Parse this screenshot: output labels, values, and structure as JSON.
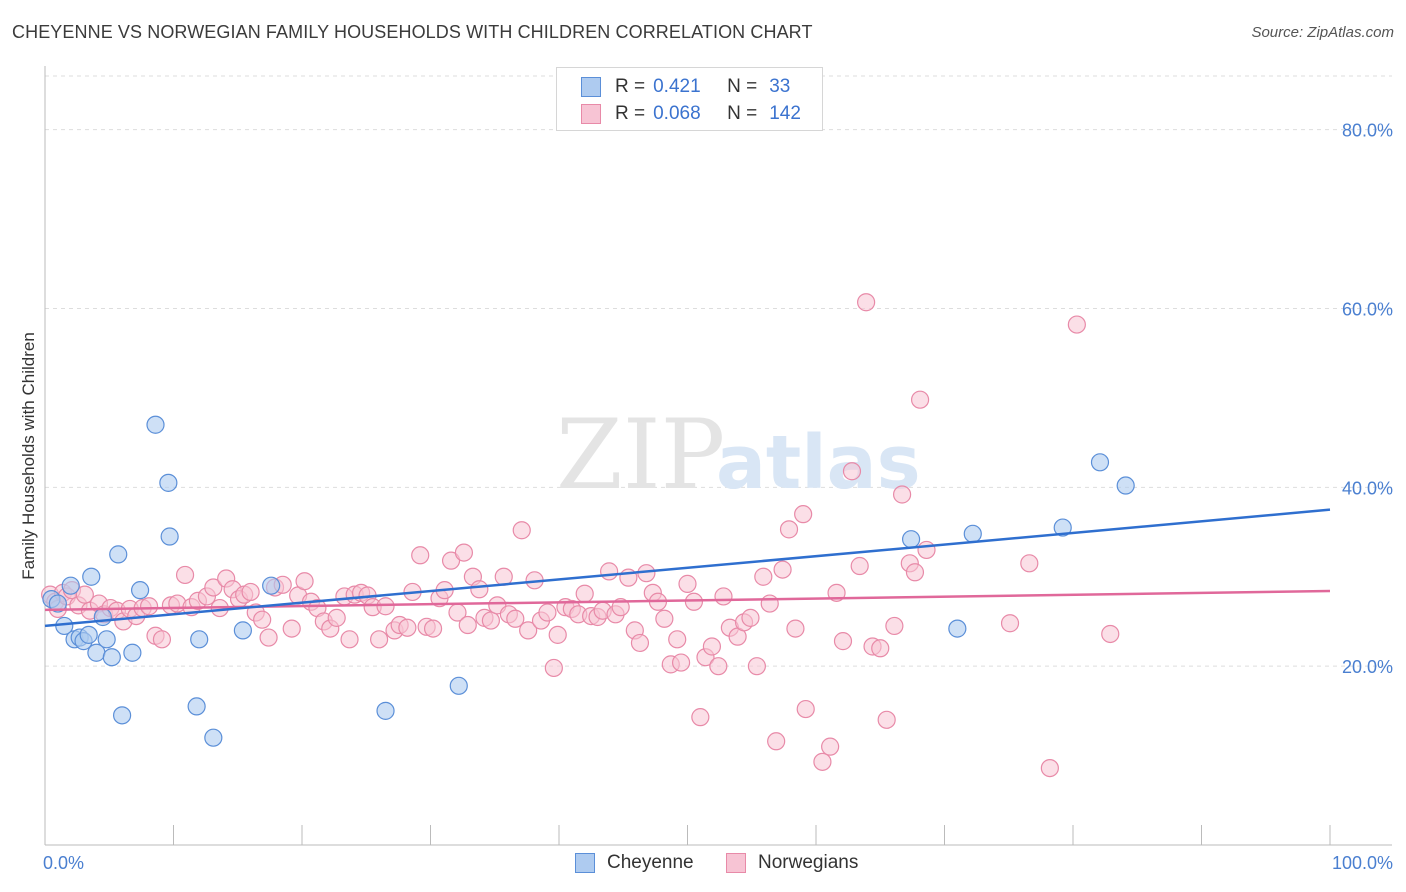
{
  "title": "CHEYENNE VS NORWEGIAN FAMILY HOUSEHOLDS WITH CHILDREN CORRELATION CHART",
  "source": "Source: ZipAtlas.com",
  "watermark": {
    "zip": "ZIP",
    "atlas": "atlas"
  },
  "colors": {
    "cheyenne_fill": "#aecbf0",
    "cheyenne_stroke": "#5b8fd8",
    "cheyenne_line": "#2f6fcf",
    "norwegian_fill": "#f7c4d4",
    "norwegian_stroke": "#e88aa8",
    "norwegian_line": "#e0689a",
    "tick_text": "#4a7fd0",
    "grid": "#dddddd"
  },
  "legend": {
    "rows": [
      {
        "r_label": "R =",
        "r_value": "0.421",
        "n_label": "N =",
        "n_value": "33"
      },
      {
        "r_label": "R =",
        "r_value": "0.068",
        "n_label": "N =",
        "n_value": "142"
      }
    ]
  },
  "bottom_legend": {
    "cheyenne": "Cheyenne",
    "norwegians": "Norwegians"
  },
  "chart_data": {
    "type": "scatter",
    "title": "CHEYENNE VS NORWEGIAN FAMILY HOUSEHOLDS WITH CHILDREN CORRELATION CHART",
    "xlabel": "",
    "ylabel": "Family Households with Children",
    "xlim": [
      0,
      100
    ],
    "ylim": [
      0,
      86
    ],
    "x_tick_labels": [
      "0.0%",
      "100.0%"
    ],
    "y_ticks": [
      20,
      40,
      60,
      80
    ],
    "y_tick_labels": [
      "20.0%",
      "40.0%",
      "60.0%",
      "80.0%"
    ],
    "grid": "horizontal dashed",
    "legend_position": "top-center",
    "series": [
      {
        "name": "Cheyenne",
        "R": 0.421,
        "N": 33,
        "trend": {
          "x": [
            0,
            100
          ],
          "y": [
            24.5,
            37.5
          ]
        },
        "points": [
          [
            0.5,
            27.5
          ],
          [
            1.0,
            27.0
          ],
          [
            1.5,
            24.5
          ],
          [
            2.0,
            29.0
          ],
          [
            2.3,
            23.0
          ],
          [
            2.7,
            23.2
          ],
          [
            3.0,
            22.8
          ],
          [
            3.4,
            23.5
          ],
          [
            3.6,
            30.0
          ],
          [
            4.0,
            21.5
          ],
          [
            4.5,
            25.5
          ],
          [
            4.8,
            23.0
          ],
          [
            5.2,
            21.0
          ],
          [
            5.7,
            32.5
          ],
          [
            6.0,
            14.5
          ],
          [
            6.8,
            21.5
          ],
          [
            7.4,
            28.5
          ],
          [
            8.6,
            47.0
          ],
          [
            9.6,
            40.5
          ],
          [
            9.7,
            34.5
          ],
          [
            12.0,
            23.0
          ],
          [
            11.8,
            15.5
          ],
          [
            13.1,
            12.0
          ],
          [
            15.4,
            24.0
          ],
          [
            17.6,
            29.0
          ],
          [
            26.5,
            15.0
          ],
          [
            32.2,
            17.8
          ],
          [
            67.4,
            34.2
          ],
          [
            71.0,
            24.2
          ],
          [
            72.2,
            34.8
          ],
          [
            79.2,
            35.5
          ],
          [
            82.1,
            42.8
          ],
          [
            84.1,
            40.2
          ]
        ]
      },
      {
        "name": "Norwegians",
        "R": 0.068,
        "N": 142,
        "trend": {
          "x": [
            0,
            100
          ],
          "y": [
            26.3,
            28.4
          ]
        },
        "points": [
          [
            0.4,
            28.0
          ],
          [
            0.8,
            27.2
          ],
          [
            1.0,
            26.4
          ],
          [
            1.4,
            28.2
          ],
          [
            1.7,
            27.8
          ],
          [
            2.1,
            28.5
          ],
          [
            2.6,
            26.8
          ],
          [
            3.1,
            28.0
          ],
          [
            3.5,
            26.2
          ],
          [
            4.2,
            27.0
          ],
          [
            4.6,
            25.8
          ],
          [
            5.1,
            26.5
          ],
          [
            5.6,
            26.2
          ],
          [
            6.1,
            25.0
          ],
          [
            6.6,
            26.4
          ],
          [
            7.1,
            25.6
          ],
          [
            7.6,
            26.5
          ],
          [
            8.1,
            26.7
          ],
          [
            8.6,
            23.4
          ],
          [
            9.1,
            23.0
          ],
          [
            9.8,
            26.8
          ],
          [
            10.3,
            27.0
          ],
          [
            10.9,
            30.2
          ],
          [
            11.4,
            26.6
          ],
          [
            11.9,
            27.3
          ],
          [
            12.6,
            27.8
          ],
          [
            13.1,
            28.8
          ],
          [
            13.6,
            26.5
          ],
          [
            14.1,
            29.8
          ],
          [
            14.6,
            28.6
          ],
          [
            15.1,
            27.5
          ],
          [
            15.5,
            28.0
          ],
          [
            16.0,
            28.3
          ],
          [
            16.4,
            26.0
          ],
          [
            16.9,
            25.2
          ],
          [
            17.4,
            23.2
          ],
          [
            17.9,
            28.8
          ],
          [
            18.5,
            29.1
          ],
          [
            19.2,
            24.2
          ],
          [
            19.7,
            27.9
          ],
          [
            20.2,
            29.5
          ],
          [
            20.7,
            27.2
          ],
          [
            21.2,
            26.5
          ],
          [
            21.7,
            25.0
          ],
          [
            22.2,
            24.2
          ],
          [
            22.7,
            25.4
          ],
          [
            23.3,
            27.8
          ],
          [
            23.7,
            23.0
          ],
          [
            24.1,
            28.0
          ],
          [
            24.6,
            28.2
          ],
          [
            25.1,
            27.9
          ],
          [
            25.5,
            26.6
          ],
          [
            26.0,
            23.0
          ],
          [
            26.5,
            26.7
          ],
          [
            27.2,
            24.0
          ],
          [
            27.6,
            24.6
          ],
          [
            28.2,
            24.3
          ],
          [
            28.6,
            28.3
          ],
          [
            29.2,
            32.4
          ],
          [
            29.7,
            24.4
          ],
          [
            30.2,
            24.2
          ],
          [
            30.7,
            27.6
          ],
          [
            31.1,
            28.5
          ],
          [
            31.6,
            31.8
          ],
          [
            32.1,
            26.0
          ],
          [
            32.6,
            32.7
          ],
          [
            32.9,
            24.6
          ],
          [
            33.3,
            30.0
          ],
          [
            33.8,
            28.6
          ],
          [
            34.2,
            25.4
          ],
          [
            34.7,
            25.1
          ],
          [
            35.2,
            26.8
          ],
          [
            35.7,
            30.0
          ],
          [
            36.1,
            25.8
          ],
          [
            36.6,
            25.3
          ],
          [
            37.1,
            35.2
          ],
          [
            37.6,
            24.0
          ],
          [
            38.1,
            29.6
          ],
          [
            38.6,
            25.1
          ],
          [
            39.1,
            26.0
          ],
          [
            39.6,
            19.8
          ],
          [
            39.9,
            23.5
          ],
          [
            40.5,
            26.6
          ],
          [
            41.0,
            26.4
          ],
          [
            41.5,
            25.8
          ],
          [
            42.0,
            28.1
          ],
          [
            42.5,
            25.6
          ],
          [
            43.0,
            25.5
          ],
          [
            43.4,
            26.2
          ],
          [
            43.9,
            30.6
          ],
          [
            44.4,
            25.8
          ],
          [
            44.8,
            26.6
          ],
          [
            45.4,
            29.9
          ],
          [
            45.9,
            24.0
          ],
          [
            46.3,
            22.6
          ],
          [
            46.8,
            30.4
          ],
          [
            47.3,
            28.2
          ],
          [
            47.7,
            27.2
          ],
          [
            48.2,
            25.3
          ],
          [
            48.7,
            20.2
          ],
          [
            49.2,
            23.0
          ],
          [
            49.5,
            20.4
          ],
          [
            50.0,
            29.2
          ],
          [
            50.5,
            27.2
          ],
          [
            51.0,
            14.3
          ],
          [
            51.4,
            21.0
          ],
          [
            51.9,
            22.2
          ],
          [
            52.4,
            20.0
          ],
          [
            52.8,
            27.8
          ],
          [
            53.3,
            24.3
          ],
          [
            53.9,
            23.3
          ],
          [
            54.4,
            24.9
          ],
          [
            54.9,
            25.4
          ],
          [
            55.4,
            20.0
          ],
          [
            55.9,
            30.0
          ],
          [
            56.4,
            27.0
          ],
          [
            56.9,
            11.6
          ],
          [
            57.4,
            30.8
          ],
          [
            57.9,
            35.3
          ],
          [
            58.4,
            24.2
          ],
          [
            59.0,
            37.0
          ],
          [
            59.2,
            15.2
          ],
          [
            60.5,
            9.3
          ],
          [
            61.1,
            11.0
          ],
          [
            61.6,
            28.2
          ],
          [
            62.1,
            22.8
          ],
          [
            62.8,
            41.8
          ],
          [
            63.4,
            31.2
          ],
          [
            63.9,
            60.7
          ],
          [
            64.4,
            22.2
          ],
          [
            65.0,
            22.0
          ],
          [
            65.5,
            14.0
          ],
          [
            66.1,
            24.5
          ],
          [
            66.7,
            39.2
          ],
          [
            67.3,
            31.5
          ],
          [
            67.7,
            30.5
          ],
          [
            68.1,
            49.8
          ],
          [
            68.6,
            33.0
          ],
          [
            75.1,
            24.8
          ],
          [
            76.6,
            31.5
          ],
          [
            78.2,
            8.6
          ],
          [
            80.3,
            58.2
          ],
          [
            82.9,
            23.6
          ]
        ]
      }
    ]
  }
}
